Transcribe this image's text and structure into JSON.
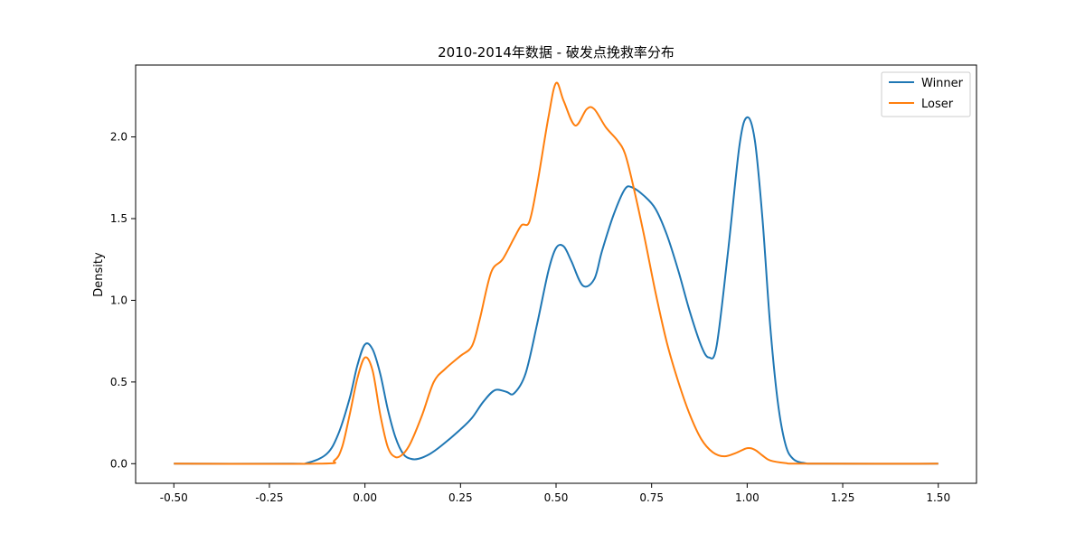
{
  "chart_data": {
    "type": "line",
    "title": "2010-2014年数据 - 破发点挽救率分布",
    "xlabel": "",
    "ylabel": "Density",
    "xlim": [
      -0.6,
      1.6
    ],
    "ylim": [
      -0.12,
      2.44
    ],
    "x_ticks": [
      -0.5,
      -0.25,
      0.0,
      0.25,
      0.5,
      0.75,
      1.0,
      1.25,
      1.5
    ],
    "x_tick_labels": [
      "-0.50",
      "-0.25",
      "0.00",
      "0.25",
      "0.50",
      "0.75",
      "1.00",
      "1.25",
      "1.50"
    ],
    "y_ticks": [
      0.0,
      0.5,
      1.0,
      1.5,
      2.0
    ],
    "y_tick_labels": [
      "0.0",
      "0.5",
      "1.0",
      "1.5",
      "2.0"
    ],
    "grid": false,
    "legend": "top-right",
    "series": [
      {
        "name": "Winner",
        "color": "#1f77b4",
        "points": [
          [
            -0.5,
            0.0
          ],
          [
            -0.2,
            0.0
          ],
          [
            -0.15,
            0.005
          ],
          [
            -0.1,
            0.06
          ],
          [
            -0.07,
            0.18
          ],
          [
            -0.04,
            0.4
          ],
          [
            -0.02,
            0.6
          ],
          [
            0.0,
            0.73
          ],
          [
            0.02,
            0.7
          ],
          [
            0.04,
            0.55
          ],
          [
            0.06,
            0.33
          ],
          [
            0.08,
            0.16
          ],
          [
            0.1,
            0.06
          ],
          [
            0.12,
            0.03
          ],
          [
            0.14,
            0.03
          ],
          [
            0.17,
            0.06
          ],
          [
            0.2,
            0.11
          ],
          [
            0.25,
            0.21
          ],
          [
            0.28,
            0.28
          ],
          [
            0.31,
            0.38
          ],
          [
            0.34,
            0.45
          ],
          [
            0.37,
            0.44
          ],
          [
            0.39,
            0.43
          ],
          [
            0.42,
            0.55
          ],
          [
            0.45,
            0.85
          ],
          [
            0.48,
            1.18
          ],
          [
            0.5,
            1.32
          ],
          [
            0.52,
            1.33
          ],
          [
            0.54,
            1.24
          ],
          [
            0.57,
            1.09
          ],
          [
            0.6,
            1.13
          ],
          [
            0.62,
            1.3
          ],
          [
            0.65,
            1.52
          ],
          [
            0.68,
            1.68
          ],
          [
            0.7,
            1.69
          ],
          [
            0.73,
            1.64
          ],
          [
            0.76,
            1.56
          ],
          [
            0.79,
            1.4
          ],
          [
            0.82,
            1.18
          ],
          [
            0.85,
            0.93
          ],
          [
            0.88,
            0.72
          ],
          [
            0.9,
            0.65
          ],
          [
            0.92,
            0.72
          ],
          [
            0.95,
            1.3
          ],
          [
            0.98,
            1.95
          ],
          [
            1.0,
            2.12
          ],
          [
            1.02,
            1.98
          ],
          [
            1.04,
            1.5
          ],
          [
            1.06,
            0.85
          ],
          [
            1.08,
            0.38
          ],
          [
            1.1,
            0.12
          ],
          [
            1.12,
            0.03
          ],
          [
            1.15,
            0.004
          ],
          [
            1.2,
            0.0
          ],
          [
            1.5,
            0.0
          ]
        ]
      },
      {
        "name": "Loser",
        "color": "#ff7f0e",
        "points": [
          [
            -0.5,
            0.0
          ],
          [
            -0.12,
            0.0
          ],
          [
            -0.08,
            0.02
          ],
          [
            -0.06,
            0.1
          ],
          [
            -0.04,
            0.3
          ],
          [
            -0.02,
            0.52
          ],
          [
            0.0,
            0.65
          ],
          [
            0.02,
            0.57
          ],
          [
            0.04,
            0.3
          ],
          [
            0.06,
            0.1
          ],
          [
            0.08,
            0.04
          ],
          [
            0.1,
            0.06
          ],
          [
            0.12,
            0.13
          ],
          [
            0.15,
            0.3
          ],
          [
            0.18,
            0.5
          ],
          [
            0.21,
            0.58
          ],
          [
            0.25,
            0.66
          ],
          [
            0.28,
            0.72
          ],
          [
            0.3,
            0.88
          ],
          [
            0.33,
            1.17
          ],
          [
            0.36,
            1.25
          ],
          [
            0.39,
            1.38
          ],
          [
            0.41,
            1.46
          ],
          [
            0.43,
            1.48
          ],
          [
            0.45,
            1.7
          ],
          [
            0.48,
            2.12
          ],
          [
            0.5,
            2.33
          ],
          [
            0.52,
            2.22
          ],
          [
            0.55,
            2.07
          ],
          [
            0.58,
            2.17
          ],
          [
            0.6,
            2.17
          ],
          [
            0.63,
            2.06
          ],
          [
            0.66,
            1.98
          ],
          [
            0.68,
            1.9
          ],
          [
            0.7,
            1.72
          ],
          [
            0.73,
            1.4
          ],
          [
            0.76,
            1.05
          ],
          [
            0.79,
            0.74
          ],
          [
            0.82,
            0.5
          ],
          [
            0.85,
            0.3
          ],
          [
            0.88,
            0.15
          ],
          [
            0.91,
            0.07
          ],
          [
            0.94,
            0.045
          ],
          [
            0.97,
            0.065
          ],
          [
            1.0,
            0.095
          ],
          [
            1.02,
            0.085
          ],
          [
            1.04,
            0.05
          ],
          [
            1.06,
            0.02
          ],
          [
            1.1,
            0.004
          ],
          [
            1.15,
            0.0
          ],
          [
            1.5,
            0.0
          ]
        ]
      }
    ]
  }
}
